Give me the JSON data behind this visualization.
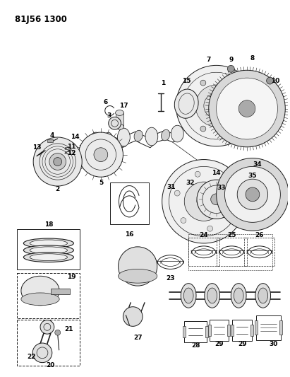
{
  "title_code": "81J56 1300",
  "bg": "#ffffff",
  "lc": "#1a1a1a",
  "fig_w": 4.11,
  "fig_h": 5.33,
  "dpi": 100
}
